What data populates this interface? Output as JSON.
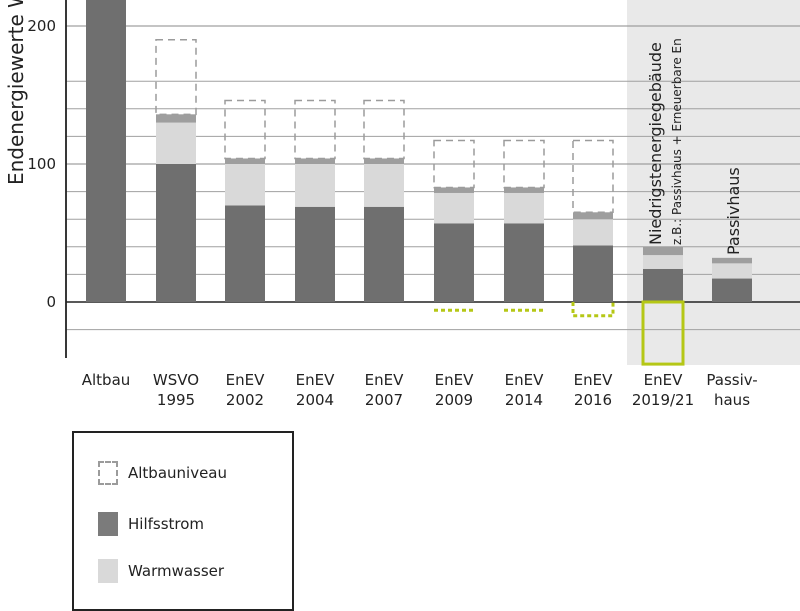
{
  "chart_data": {
    "type": "bar",
    "ylabel": "Endenergiewerte Wohungsbau [kW",
    "yticks": [
      200,
      100,
      0
    ],
    "ylim": [
      -40,
      220
    ],
    "grid": true,
    "categories": [
      [
        "Altbau"
      ],
      [
        "WSVO",
        "1995"
      ],
      [
        "EnEV",
        "2002"
      ],
      [
        "EnEV",
        "2004"
      ],
      [
        "EnEV",
        "2007"
      ],
      [
        "EnEV",
        "2009"
      ],
      [
        "EnEV",
        "2014"
      ],
      [
        "EnEV",
        "2016"
      ],
      [
        "EnEV",
        "2019/21"
      ],
      [
        "Passiv-",
        "haus"
      ]
    ],
    "bars": [
      {
        "base": 220,
        "warmwasser": 0,
        "hilfsstrom": 0,
        "altbauniveau": null,
        "negative": null
      },
      {
        "base": 100,
        "warmwasser": 30,
        "hilfsstrom": 6,
        "altbauniveau": 190,
        "negative": null
      },
      {
        "base": 70,
        "warmwasser": 30,
        "hilfsstrom": 4,
        "altbauniveau": 146,
        "negative": null
      },
      {
        "base": 69,
        "warmwasser": 31,
        "hilfsstrom": 4,
        "altbauniveau": 146,
        "negative": null
      },
      {
        "base": 69,
        "warmwasser": 31,
        "hilfsstrom": 4,
        "altbauniveau": 146,
        "negative": null
      },
      {
        "base": 57,
        "warmwasser": 22,
        "hilfsstrom": 4,
        "altbauniveau": 117,
        "negative": -6
      },
      {
        "base": 57,
        "warmwasser": 22,
        "hilfsstrom": 4,
        "altbauniveau": 117,
        "negative": -6
      },
      {
        "base": 41,
        "warmwasser": 19,
        "hilfsstrom": 5,
        "altbauniveau": 117,
        "negative": -10
      },
      {
        "base": 24,
        "warmwasser": 10,
        "hilfsstrom": 6,
        "altbauniveau": null,
        "negative": -45
      },
      {
        "base": 17,
        "warmwasser": 11,
        "hilfsstrom": 4,
        "altbauniveau": null,
        "negative": null
      }
    ],
    "annotations": {
      "niedrigstenergie_title": "Niedrigstenergiegebäude",
      "niedrigstenergie_subtitle": "z.B.: Passivhaus + Erneuerbare En",
      "passivhaus_label": "Passivhaus"
    },
    "legend": [
      {
        "label": "Altbauniveau",
        "kind": "dashed"
      },
      {
        "label": "Hilfsstrom",
        "kind": "solid-dark"
      },
      {
        "label": "Warmwasser",
        "kind": "solid-light"
      }
    ],
    "colors": {
      "base": "#6f6f6f",
      "hilfsstrom": "#9e9e9e",
      "warmwasser": "#d9d9d9",
      "altbauniveau": "#9b9b9b",
      "negative": "#b5c716",
      "highlight": "#e9e9e9",
      "grid": "#8a8a8a",
      "axis": "#222222",
      "text": "#222222"
    }
  }
}
